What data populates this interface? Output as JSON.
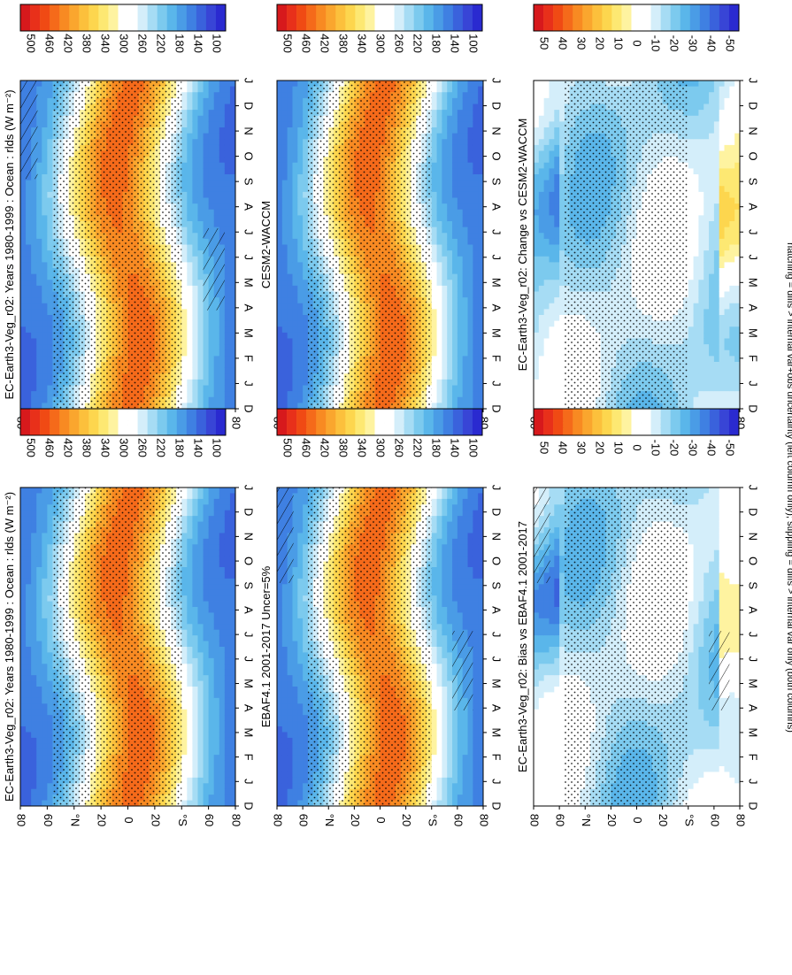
{
  "figure": {
    "footnote": "hatching = diffs > internal var+obs uncertainty (left column only); stippling = diffs > internal var only (both columns)"
  },
  "scales": {
    "absolute": {
      "ticks": [
        "500",
        "460",
        "420",
        "380",
        "340",
        "300",
        "260",
        "220",
        "180",
        "140",
        "100"
      ],
      "colors": [
        "#d7191c",
        "#e8301a",
        "#f04a14",
        "#f56a1a",
        "#f88a22",
        "#faa62e",
        "#fcc03c",
        "#fdd64e",
        "#fde872",
        "#fef3a0",
        "#ffffff",
        "#ffffff",
        "#d4eefa",
        "#a6dcf4",
        "#7ccaee",
        "#5ab6ea",
        "#4a9ce6",
        "#3f80e2",
        "#3a62dc",
        "#3845d6",
        "#2a2ad0"
      ]
    },
    "difference": {
      "ticks": [
        "50",
        "40",
        "30",
        "20",
        "10",
        "0",
        "-10",
        "-20",
        "-30",
        "-40",
        "-50"
      ],
      "colors": [
        "#d7191c",
        "#e8301a",
        "#f04a14",
        "#f56a1a",
        "#f88a22",
        "#faa62e",
        "#fcc03c",
        "#fdd64e",
        "#fde872",
        "#fef3a0",
        "#ffffff",
        "#ffffff",
        "#d4eefa",
        "#a6dcf4",
        "#7ccaee",
        "#5ab6ea",
        "#4a9ce6",
        "#3f80e2",
        "#3a62dc",
        "#3845d6",
        "#2a2ad0"
      ]
    }
  },
  "chart_data": [
    {
      "type": "heatmap",
      "title": "EC-Earth3-Veg_r02: Years 1980-1999 : Ocean : rlds (W m⁻²)",
      "x": [
        "D",
        "J",
        "F",
        "M",
        "A",
        "M",
        "J",
        "J",
        "A",
        "S",
        "O",
        "N",
        "D",
        "J"
      ],
      "y_ticks": [
        "80",
        "60",
        "°N",
        "20",
        "0",
        "20",
        "°S",
        "60",
        "80"
      ],
      "zlim": [
        100,
        500
      ],
      "hatching": true,
      "stippling": true
    },
    {
      "type": "heatmap",
      "title": "EC-Earth3-Veg_r02: Years 1980-1999 : Ocean : rlds (W m⁻²)",
      "x": [
        "D",
        "J",
        "F",
        "M",
        "A",
        "M",
        "J",
        "J",
        "A",
        "S",
        "O",
        "N",
        "D",
        "J"
      ],
      "y_ticks": [
        "80",
        "60",
        "°N",
        "20",
        "0",
        "20",
        "°S",
        "60",
        "80"
      ],
      "zlim": [
        100,
        500
      ],
      "hatching": false,
      "stippling": true
    },
    {
      "type": "heatmap",
      "title": "EBAF4.1 2001-2017 Uncer=5%",
      "x": [
        "D",
        "J",
        "F",
        "M",
        "A",
        "M",
        "J",
        "J",
        "A",
        "S",
        "O",
        "N",
        "D",
        "J"
      ],
      "y_ticks": [
        "80",
        "60",
        "°N",
        "20",
        "0",
        "20",
        "°S",
        "60",
        "80"
      ],
      "zlim": [
        100,
        500
      ],
      "hatching": true,
      "stippling": true
    },
    {
      "type": "heatmap",
      "title": "CESM2-WACCM",
      "x": [
        "D",
        "J",
        "F",
        "M",
        "A",
        "M",
        "J",
        "J",
        "A",
        "S",
        "O",
        "N",
        "D",
        "J"
      ],
      "y_ticks": [
        "80",
        "60",
        "°N",
        "20",
        "0",
        "20",
        "°S",
        "60",
        "80"
      ],
      "zlim": [
        100,
        500
      ],
      "hatching": false,
      "stippling": true
    },
    {
      "type": "heatmap",
      "title": "EC-Earth3-Veg_r02: Bias vs EBAF4.1 2001-2017",
      "x": [
        "D",
        "J",
        "F",
        "M",
        "A",
        "M",
        "J",
        "J",
        "A",
        "S",
        "O",
        "N",
        "D",
        "J"
      ],
      "y_ticks": [
        "80",
        "60",
        "°N",
        "20",
        "0",
        "20",
        "°S",
        "60",
        "80"
      ],
      "zlim": [
        -50,
        50
      ],
      "hatching": true,
      "stippling": true
    },
    {
      "type": "heatmap",
      "title": "EC-Earth3-Veg_r02: Change vs CESM2-WACCM",
      "x": [
        "D",
        "J",
        "F",
        "M",
        "A",
        "M",
        "J",
        "J",
        "A",
        "S",
        "O",
        "N",
        "D",
        "J"
      ],
      "y_ticks": [
        "80",
        "60",
        "°N",
        "20",
        "0",
        "20",
        "°S",
        "60",
        "80"
      ],
      "zlim": [
        -50,
        50
      ],
      "hatching": false,
      "stippling": true
    }
  ]
}
